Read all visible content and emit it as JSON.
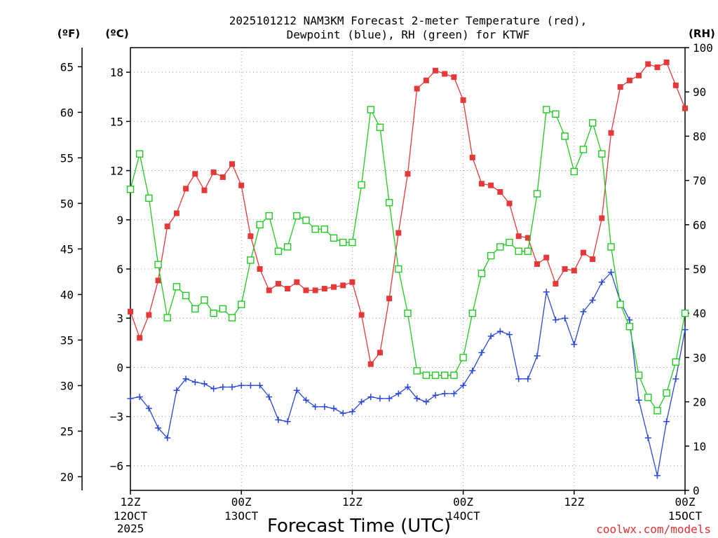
{
  "chart_data": {
    "type": "line",
    "title_line1": "2025101212 NAM3KM Forecast 2-meter Temperature (red),",
    "title_line2": "Dewpoint (blue), RH (green) for KTWF",
    "xlabel": "Forecast Time (UTC)",
    "credit": "coolwx.com/models",
    "unit_f": "(ºF)",
    "unit_c": "(ºC)",
    "unit_rh": "(RH)",
    "hours_range": [
      0,
      60
    ],
    "c_range": [
      -7.5,
      19.5
    ],
    "rh_range": [
      0,
      100
    ],
    "f_ticks": [
      20,
      25,
      30,
      35,
      40,
      45,
      50,
      55,
      60,
      65
    ],
    "c_ticks": [
      -6,
      -3,
      0,
      3,
      6,
      9,
      12,
      15,
      18
    ],
    "rh_ticks": [
      0,
      10,
      20,
      30,
      40,
      50,
      60,
      70,
      80,
      90,
      100
    ],
    "x_ticks": [
      {
        "hour": 0,
        "line1": "12Z",
        "line2": "12OCT",
        "line3": "2025"
      },
      {
        "hour": 12,
        "line1": "00Z",
        "line2": "13OCT",
        "line3": ""
      },
      {
        "hour": 24,
        "line1": "12Z",
        "line2": "",
        "line3": ""
      },
      {
        "hour": 36,
        "line1": "00Z",
        "line2": "14OCT",
        "line3": ""
      },
      {
        "hour": 48,
        "line1": "12Z",
        "line2": "",
        "line3": ""
      },
      {
        "hour": 60,
        "line1": "00Z",
        "line2": "15OCT",
        "line3": ""
      }
    ],
    "hours": [
      0,
      1,
      2,
      3,
      4,
      5,
      6,
      7,
      8,
      9,
      10,
      11,
      12,
      13,
      14,
      15,
      16,
      17,
      18,
      19,
      20,
      21,
      22,
      23,
      24,
      25,
      26,
      27,
      28,
      29,
      30,
      31,
      32,
      33,
      34,
      35,
      36,
      37,
      38,
      39,
      40,
      41,
      42,
      43,
      44,
      45,
      46,
      47,
      48,
      49,
      50,
      51,
      52,
      53,
      54,
      55,
      56,
      57,
      58,
      59,
      60
    ],
    "series": [
      {
        "name": "Temperature",
        "unit": "C",
        "color": "#e53838",
        "marker": "filled-square",
        "values": [
          3.4,
          1.8,
          3.2,
          5.3,
          8.6,
          9.4,
          10.9,
          11.8,
          10.8,
          11.9,
          11.6,
          12.4,
          11.1,
          8.0,
          6.0,
          4.7,
          5.1,
          4.8,
          5.2,
          4.7,
          4.7,
          4.8,
          4.9,
          5.0,
          5.2,
          3.2,
          0.2,
          0.9,
          4.2,
          8.2,
          11.8,
          17.0,
          17.5,
          18.1,
          17.9,
          17.7,
          16.3,
          12.8,
          11.2,
          11.1,
          10.7,
          10.0,
          8.0,
          7.9,
          6.3,
          6.7,
          5.1,
          6.0,
          5.9,
          7.0,
          6.6,
          9.1,
          14.3,
          17.1,
          17.5,
          17.8,
          18.5,
          18.3,
          18.6,
          17.2,
          15.8
        ]
      },
      {
        "name": "Dewpoint",
        "unit": "C",
        "color": "#2a47d8",
        "marker": "plus",
        "values": [
          -1.9,
          -1.8,
          -2.5,
          -3.7,
          -4.3,
          -1.4,
          -0.7,
          -0.9,
          -1.0,
          -1.3,
          -1.2,
          -1.2,
          -1.1,
          -1.1,
          -1.1,
          -1.8,
          -3.2,
          -3.3,
          -1.4,
          -2.0,
          -2.4,
          -2.4,
          -2.5,
          -2.8,
          -2.7,
          -2.1,
          -1.8,
          -1.9,
          -1.9,
          -1.6,
          -1.2,
          -1.9,
          -2.1,
          -1.7,
          -1.6,
          -1.6,
          -1.1,
          -0.2,
          0.9,
          1.9,
          2.2,
          2.0,
          -0.7,
          -0.7,
          0.7,
          4.6,
          2.9,
          3.0,
          1.4,
          3.4,
          4.1,
          5.2,
          5.8,
          4.0,
          2.9,
          -2.0,
          -4.3,
          -6.6,
          -3.3,
          -0.7,
          2.3
        ]
      },
      {
        "name": "RH",
        "unit": "%",
        "color": "#22c922",
        "marker": "open-square",
        "values": [
          68,
          76,
          66,
          51,
          39,
          46,
          44,
          41,
          43,
          40,
          41,
          39,
          42,
          52,
          60,
          62,
          54,
          55,
          62,
          61,
          59,
          59,
          57,
          56,
          56,
          69,
          86,
          82,
          65,
          50,
          40,
          27,
          26,
          26,
          26,
          26,
          30,
          40,
          49,
          53,
          55,
          56,
          54,
          54,
          67,
          86,
          85,
          80,
          72,
          77,
          83,
          76,
          55,
          42,
          37,
          26,
          21,
          18,
          22,
          29,
          40
        ]
      }
    ]
  }
}
